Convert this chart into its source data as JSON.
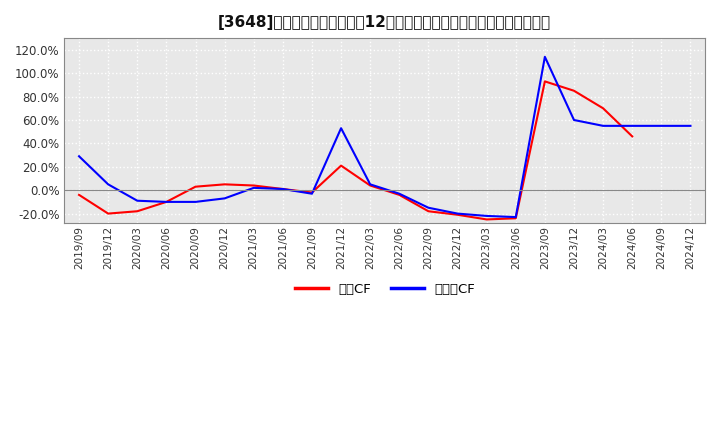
{
  "title": "[3648]　キャッシュフローの12か月移動合計の対前年同期増減率の推移",
  "legend_labels": [
    "営業CF",
    "フリーCF"
  ],
  "line_colors": [
    "#ff0000",
    "#0000ff"
  ],
  "plot_bg_color": "#e8e8e8",
  "fig_bg_color": "#ffffff",
  "grid_color": "#ffffff",
  "zero_line_color": "#888888",
  "dates": [
    "2019/09",
    "2019/12",
    "2020/03",
    "2020/06",
    "2020/09",
    "2020/12",
    "2021/03",
    "2021/06",
    "2021/09",
    "2021/12",
    "2022/03",
    "2022/06",
    "2022/09",
    "2022/12",
    "2023/03",
    "2023/06",
    "2023/09",
    "2023/12",
    "2024/03",
    "2024/06",
    "2024/09",
    "2024/12"
  ],
  "operating_cf": [
    -0.04,
    -0.2,
    -0.18,
    -0.1,
    0.03,
    0.05,
    0.04,
    0.01,
    -0.02,
    0.21,
    0.04,
    -0.04,
    -0.18,
    -0.21,
    -0.25,
    -0.24,
    0.93,
    0.85,
    0.7,
    0.46,
    null,
    null
  ],
  "free_cf": [
    0.29,
    0.05,
    -0.09,
    -0.1,
    -0.1,
    -0.07,
    0.02,
    0.01,
    -0.03,
    0.53,
    0.05,
    -0.03,
    -0.15,
    -0.2,
    -0.22,
    -0.23,
    1.14,
    0.6,
    0.55,
    0.55,
    0.55,
    0.55
  ],
  "yticks": [
    -0.2,
    0.0,
    0.2,
    0.4,
    0.6,
    0.8,
    1.0,
    1.2
  ],
  "ylim": [
    -0.28,
    1.3
  ]
}
